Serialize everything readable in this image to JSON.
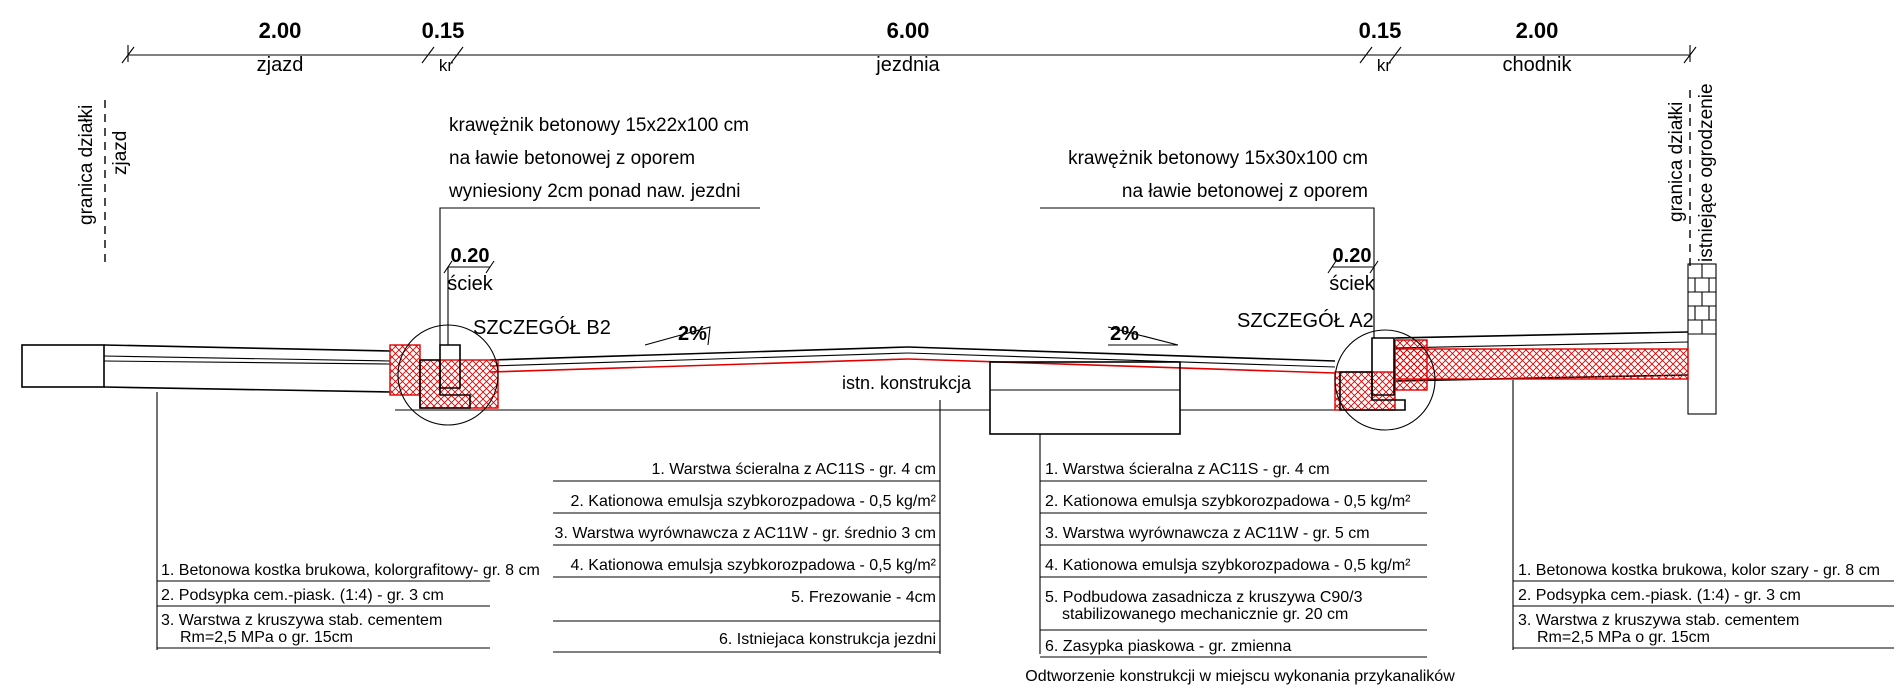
{
  "dimensions": [
    {
      "value": "2.00",
      "label": "zjazd"
    },
    {
      "value": "0.15",
      "label": "kr"
    },
    {
      "value": "6.00",
      "label": "jezdnia"
    },
    {
      "value": "0.15",
      "label": "kr"
    },
    {
      "value": "2.00",
      "label": "chodnik"
    }
  ],
  "left_boundary": {
    "line1": "granica działki",
    "line2": "zjazd"
  },
  "right_boundary": {
    "line1": "granica działki",
    "line2": "istniejące ogrodzenie"
  },
  "curb_left": {
    "lines": [
      "krawężnik betonowy 15x22x100 cm",
      "na ławie betonowej z oporem",
      "wyniesiony 2cm ponad naw. jezdni"
    ],
    "gutter_width": "0.20",
    "gutter_label": "ściek",
    "detail": "SZCZEGÓŁ B2"
  },
  "curb_right": {
    "lines": [
      "krawężnik betonowy 15x30x100 cm",
      "na ławie betonowej z oporem"
    ],
    "gutter_width": "0.20",
    "gutter_label": "ściek",
    "detail": "SZCZEGÓŁ A2"
  },
  "slopes": {
    "left": "2%",
    "right": "2%"
  },
  "existing_label": "istn. konstrukcja",
  "layers_driveway": [
    "1. Betonowa kostka brukowa, kolorgrafitowy- gr. 8 cm",
    "2. Podsypka cem.-piask. (1:4) - gr. 3 cm",
    "3. Warstwa z kruszywa stab. cementem",
    "Rm=2,5 MPa o gr. 15cm"
  ],
  "layers_road_existing": [
    "1. Warstwa ścieralna z AC11S - gr. 4 cm",
    "2. Kationowa emulsja szybkorozpadowa - 0,5 kg/m²",
    "3. Warstwa wyrównawcza z AC11W - gr. średnio 3 cm",
    "4. Kationowa emulsja szybkorozpadowa - 0,5 kg/m²",
    "5. Frezowanie - 4cm",
    "6. Istniejaca konstrukcja jezdni"
  ],
  "layers_road_trench": [
    "1. Warstwa ścieralna z AC11S - gr. 4 cm",
    "2. Kationowa emulsja szybkorozpadowa - 0,5 kg/m²",
    "3. Warstwa wyrównawcza z AC11W - gr. 5 cm",
    "4. Kationowa emulsja szybkorozpadowa - 0,5 kg/m²",
    "5. Podbudowa zasadnicza z kruszywa C90/3",
    "stabilizowanego mechanicznie gr. 20 cm",
    "6. Zasypka piaskowa - gr. zmienna"
  ],
  "trench_caption": "Odtworzenie konstrukcji w miejscu wykonania przykanalików",
  "layers_sidewalk": [
    "1. Betonowa kostka brukowa, kolor szary - gr. 8 cm",
    "2. Podsypka cem.-piask. (1:4) - gr. 3 cm",
    "3. Warstwa z kruszywa stab. cementem",
    "Rm=2,5 MPa o gr. 15cm"
  ],
  "colors": {
    "line": "#000000",
    "hatch": "#e00000"
  }
}
